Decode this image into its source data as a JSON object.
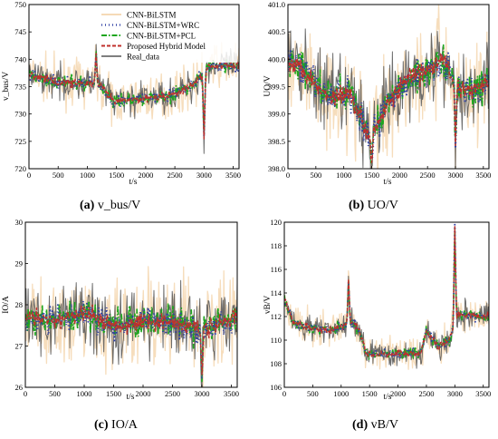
{
  "legend": {
    "entries": [
      {
        "label": "CNN-BiLSTM",
        "color": "#f2ce9f",
        "style": "solid"
      },
      {
        "label": "CNN-BiLSTM+WRC",
        "color": "#2d3ea3",
        "style": "dotted"
      },
      {
        "label": "CNN-BiLSTM+PCL",
        "color": "#1ea61e",
        "style": "dashdot"
      },
      {
        "label": "Proposed Hybrid Model",
        "color": "#c0302c",
        "style": "dashed"
      },
      {
        "label": "Real_data",
        "color": "#555555",
        "style": "solid"
      }
    ]
  },
  "chart_data": [
    {
      "id": "a",
      "type": "line",
      "caption_letter": "(a)",
      "caption_text": " v_bus/V",
      "xlabel": "t/s",
      "ylabel": "v_bus/V",
      "xlim": [
        0,
        3600
      ],
      "ylim": [
        720,
        750
      ],
      "xticks": [
        0,
        500,
        1000,
        1500,
        2000,
        2500,
        3000,
        3500
      ],
      "yticks": [
        720,
        725,
        730,
        735,
        740,
        745,
        750
      ],
      "noise": 1.2,
      "segments": [
        [
          0,
          737.2
        ],
        [
          500,
          735.8
        ],
        [
          1200,
          735.5
        ],
        [
          1450,
          732.2
        ],
        [
          2450,
          733.5
        ],
        [
          2800,
          735.2
        ],
        [
          3100,
          738.8
        ],
        [
          3600,
          738.8
        ]
      ],
      "spikes": [
        [
          1150,
          741.0
        ],
        [
          3000,
          725.5
        ]
      ]
    },
    {
      "id": "b",
      "type": "line",
      "caption_letter": "(b)",
      "caption_text": " UO/V",
      "xlabel": "t/s",
      "ylabel": "UO/V",
      "xlim": [
        0,
        3600
      ],
      "ylim": [
        398.0,
        401.0
      ],
      "xticks": [
        0,
        500,
        1000,
        1500,
        2000,
        2500,
        3000,
        3500
      ],
      "yticks": [
        398.0,
        398.5,
        399.0,
        399.5,
        400.0,
        400.5,
        401.0
      ],
      "noise": 0.3,
      "segments": [
        [
          0,
          400.0
        ],
        [
          300,
          399.8
        ],
        [
          700,
          399.3
        ],
        [
          1100,
          399.4
        ],
        [
          1450,
          398.6
        ],
        [
          1800,
          399.2
        ],
        [
          2100,
          399.6
        ],
        [
          2500,
          399.8
        ],
        [
          2800,
          400.0
        ],
        [
          3000,
          399.5
        ],
        [
          3300,
          399.4
        ],
        [
          3600,
          399.6
        ]
      ],
      "spikes": [
        [
          1500,
          398.1
        ],
        [
          3000,
          398.4
        ]
      ]
    },
    {
      "id": "c",
      "type": "line",
      "caption_letter": "(c)",
      "caption_text": " IO/A",
      "xlabel": "t/s",
      "ylabel": "IO/A",
      "xlim": [
        0,
        3600
      ],
      "ylim": [
        26,
        30
      ],
      "xticks": [
        0,
        500,
        1000,
        1500,
        2000,
        2500,
        3000,
        3500
      ],
      "yticks": [
        26,
        27,
        28,
        29,
        30
      ],
      "noise": 0.35,
      "segments": [
        [
          0,
          27.7
        ],
        [
          500,
          27.6
        ],
        [
          1000,
          27.8
        ],
        [
          1500,
          27.5
        ],
        [
          2000,
          27.6
        ],
        [
          2500,
          27.6
        ],
        [
          3000,
          27.4
        ],
        [
          3600,
          27.7
        ]
      ],
      "spikes": [
        [
          3000,
          26.2
        ]
      ]
    },
    {
      "id": "d",
      "type": "line",
      "caption_letter": "(d)",
      "caption_text": " vB/V",
      "xlabel": "t/s",
      "ylabel": "vB/V",
      "xlim": [
        0,
        3600
      ],
      "ylim": [
        106,
        120
      ],
      "xticks": [
        0,
        500,
        1000,
        1500,
        2000,
        2500,
        3000,
        3500
      ],
      "yticks": [
        106,
        108,
        110,
        112,
        114,
        116,
        118,
        120
      ],
      "noise": 0.45,
      "segments": [
        [
          0,
          113.5
        ],
        [
          150,
          111.5
        ],
        [
          500,
          111.0
        ],
        [
          800,
          110.8
        ],
        [
          1200,
          111.5
        ],
        [
          1300,
          111.0
        ],
        [
          1450,
          108.8
        ],
        [
          2400,
          108.9
        ],
        [
          2500,
          110.8
        ],
        [
          2700,
          109.5
        ],
        [
          2900,
          110.0
        ],
        [
          3050,
          112.2
        ],
        [
          3600,
          112.0
        ]
      ],
      "spikes": [
        [
          1130,
          115.3
        ],
        [
          3000,
          119.5
        ]
      ]
    }
  ]
}
